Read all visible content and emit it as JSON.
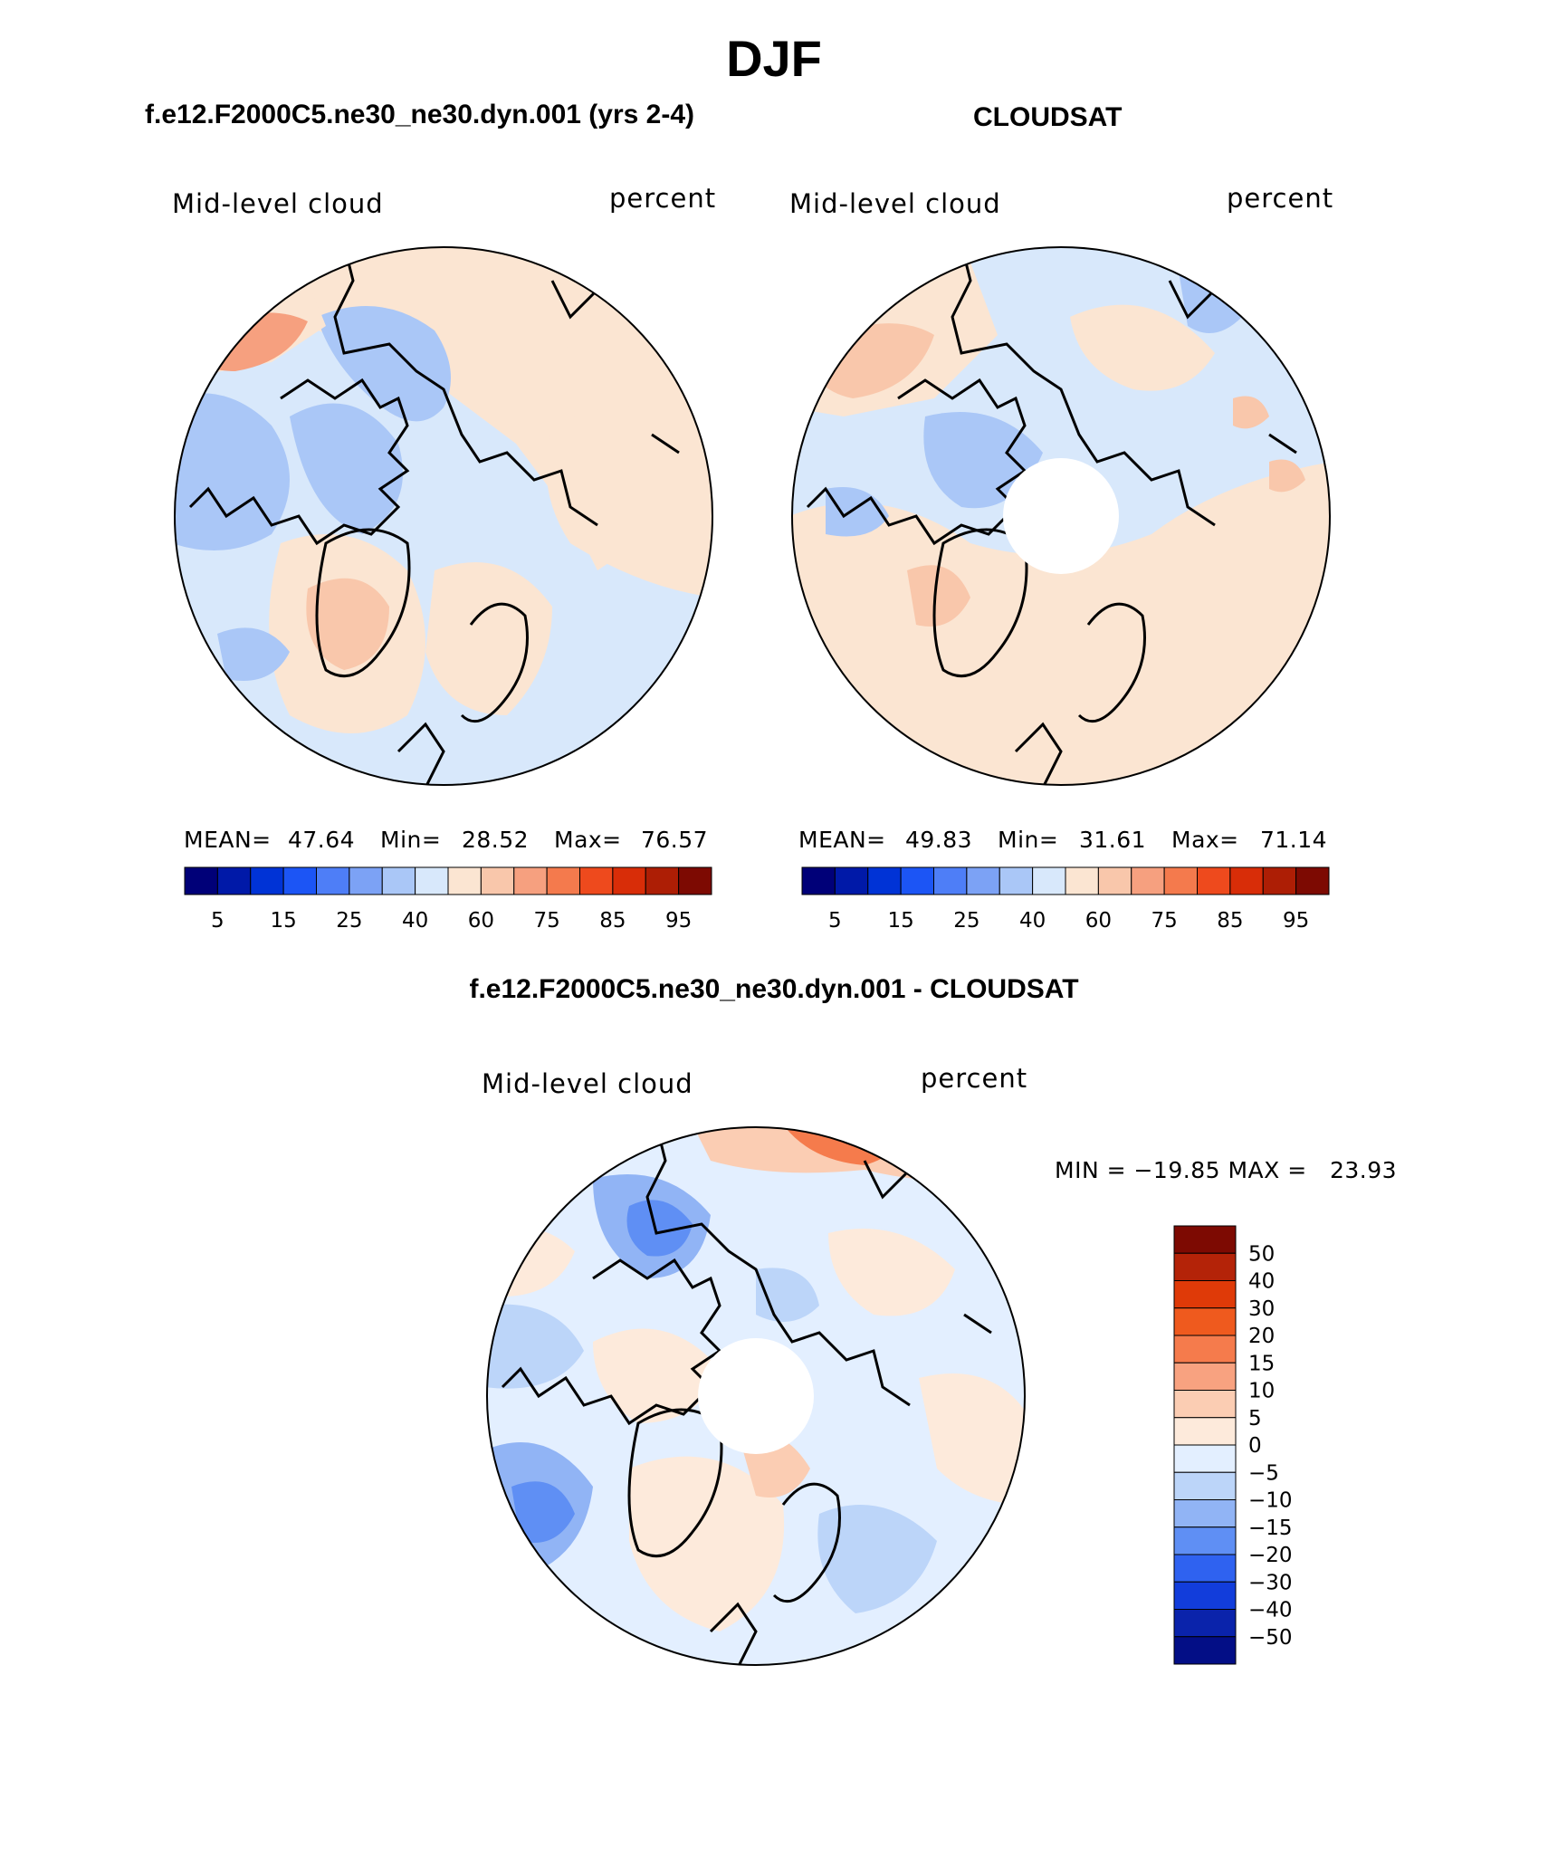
{
  "figure": {
    "title": "DJF",
    "top_left_title": "f.e12.F2000C5.ne30_ne30.dyn.001 (yrs 2-4)",
    "top_right_title": "CLOUDSAT",
    "bottom_title": "f.e12.F2000C5.ne30_ne30.dyn.001 - CLOUDSAT"
  },
  "panels": {
    "left": {
      "field": "Mid-level cloud",
      "units": "percent",
      "mean_label": "MEAN=",
      "mean": "47.64",
      "min_label": "Min=",
      "min": "28.52",
      "max_label": "Max=",
      "max": "76.57"
    },
    "right": {
      "field": "Mid-level cloud",
      "units": "percent",
      "mean_label": "MEAN=",
      "mean": "49.83",
      "min_label": "Min=",
      "min": "31.61",
      "max_label": "Max=",
      "max": "71.14"
    },
    "diff": {
      "field": "Mid-level cloud",
      "units": "percent",
      "minmax_text": "MIN = −19.85 MAX =   23.93"
    }
  },
  "colorbars": {
    "abs": {
      "colors": [
        "#000078",
        "#0019a8",
        "#0033d6",
        "#1c55f5",
        "#4e7ef7",
        "#7ca2f5",
        "#aac7f7",
        "#d8e8fb",
        "#fbe5d2",
        "#f9c7ab",
        "#f6a07f",
        "#f47a4d",
        "#ee4a1d",
        "#d82d08",
        "#ad1e05",
        "#7d0a02"
      ],
      "tick_labels": [
        "5",
        "15",
        "25",
        "40",
        "60",
        "75",
        "85",
        "95"
      ]
    },
    "diff": {
      "colors": [
        "#7d0a02",
        "#b42308",
        "#df3a08",
        "#ef5a1e",
        "#f57b4c",
        "#f8a280",
        "#fbcdb3",
        "#fdeadb",
        "#e3efff",
        "#bcd5f9",
        "#91b4f5",
        "#5f8ff4",
        "#2f62f0",
        "#123ddb",
        "#0a23ab",
        "#030e86"
      ],
      "tick_labels": [
        "50",
        "40",
        "30",
        "20",
        "15",
        "10",
        "5",
        "0",
        "−5",
        "−10",
        "−15",
        "−20",
        "−30",
        "−40",
        "−50"
      ]
    }
  }
}
